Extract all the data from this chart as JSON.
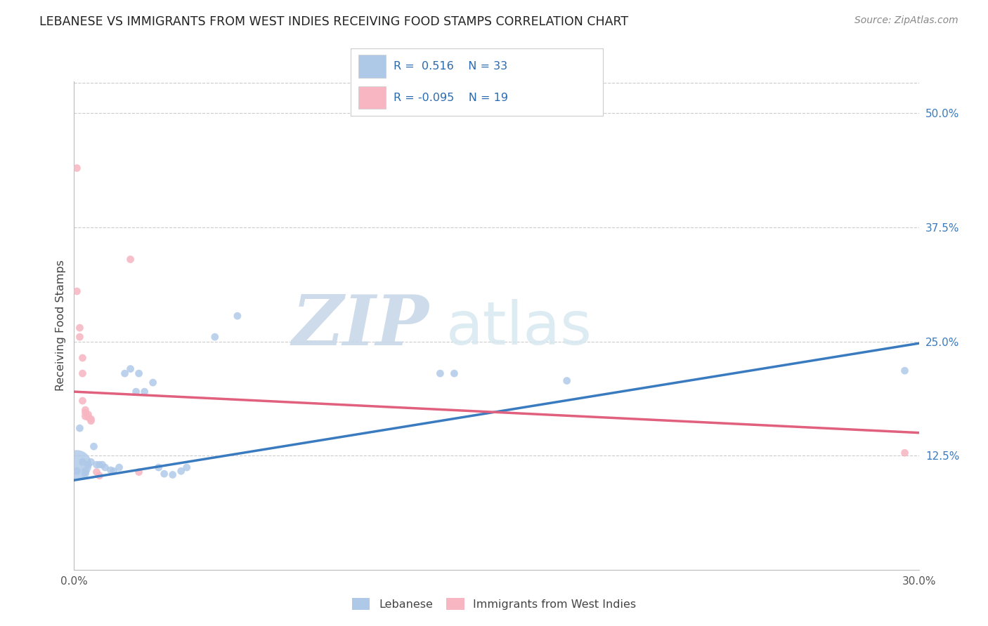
{
  "title": "LEBANESE VS IMMIGRANTS FROM WEST INDIES RECEIVING FOOD STAMPS CORRELATION CHART",
  "source": "Source: ZipAtlas.com",
  "ylabel": "Receiving Food Stamps",
  "y_ticks": [
    "12.5%",
    "25.0%",
    "37.5%",
    "50.0%"
  ],
  "y_tick_vals": [
    0.125,
    0.25,
    0.375,
    0.5
  ],
  "xlim": [
    0.0,
    0.3
  ],
  "ylim": [
    0.0,
    0.535
  ],
  "blue_label": "Lebanese",
  "pink_label": "Immigrants from West Indies",
  "blue_color": "#aec8e8",
  "pink_color": "#f7b6c2",
  "blue_line_color": "#3a7bbf",
  "pink_line_color": "#e0607e",
  "watermark_zip": "ZIP",
  "watermark_atlas": "atlas",
  "blue_points_x": [
    0.001,
    0.001,
    0.002,
    0.003,
    0.004,
    0.004,
    0.005,
    0.006,
    0.007,
    0.008,
    0.009,
    0.01,
    0.011,
    0.013,
    0.014,
    0.016,
    0.018,
    0.02,
    0.022,
    0.023,
    0.025,
    0.028,
    0.03,
    0.032,
    0.035,
    0.038,
    0.04,
    0.05,
    0.058,
    0.13,
    0.135,
    0.175,
    0.295
  ],
  "blue_points_y": [
    0.115,
    0.108,
    0.155,
    0.118,
    0.105,
    0.108,
    0.115,
    0.118,
    0.135,
    0.115,
    0.115,
    0.115,
    0.112,
    0.109,
    0.108,
    0.112,
    0.215,
    0.22,
    0.195,
    0.215,
    0.195,
    0.205,
    0.112,
    0.105,
    0.104,
    0.108,
    0.112,
    0.255,
    0.278,
    0.215,
    0.215,
    0.207,
    0.218
  ],
  "blue_sizes": [
    900,
    60,
    60,
    60,
    60,
    60,
    60,
    60,
    60,
    60,
    60,
    60,
    60,
    60,
    60,
    60,
    60,
    60,
    60,
    60,
    60,
    60,
    60,
    60,
    60,
    60,
    60,
    60,
    60,
    60,
    60,
    60,
    60
  ],
  "pink_points_x": [
    0.001,
    0.001,
    0.002,
    0.002,
    0.003,
    0.003,
    0.003,
    0.004,
    0.004,
    0.004,
    0.005,
    0.005,
    0.006,
    0.006,
    0.008,
    0.009,
    0.02,
    0.023,
    0.295
  ],
  "pink_points_y": [
    0.44,
    0.305,
    0.265,
    0.255,
    0.232,
    0.215,
    0.185,
    0.175,
    0.172,
    0.168,
    0.17,
    0.167,
    0.165,
    0.163,
    0.107,
    0.103,
    0.34,
    0.107,
    0.128
  ],
  "blue_trend_x": [
    0.0,
    0.3
  ],
  "blue_trend_y": [
    0.098,
    0.248
  ],
  "pink_trend_x": [
    0.0,
    0.3
  ],
  "pink_trend_y": [
    0.195,
    0.15
  ],
  "legend_text_row1": "R =  0.516    N = 33",
  "legend_text_row2": "R = -0.095    N = 19"
}
